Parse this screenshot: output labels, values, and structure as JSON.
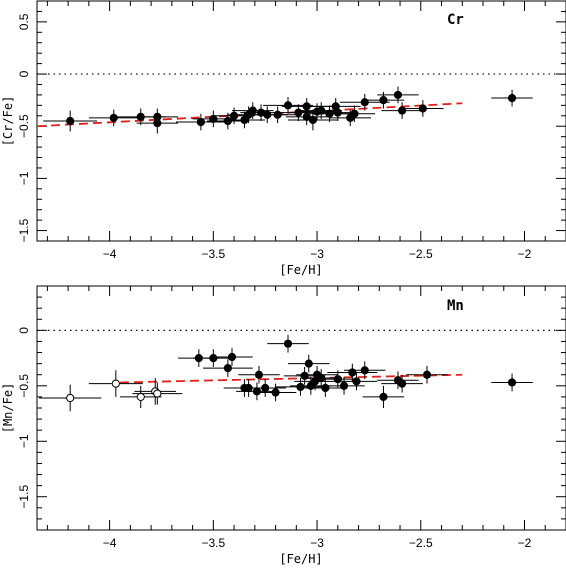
{
  "chart_data": [
    {
      "type": "scatter",
      "element_label": "Cr",
      "xlabel": "[Fe/H]",
      "ylabel": "[Cr/Fe]",
      "xlim": [
        -4.35,
        -1.8
      ],
      "ylim": [
        -1.6,
        0.7
      ],
      "xticks": [
        -4,
        -3.5,
        -3,
        -2.5,
        -2
      ],
      "xtick_labels": [
        "−4",
        "−3.5",
        "−3",
        "−2.5",
        "−2"
      ],
      "yticks": [
        0.5,
        0,
        -0.5,
        -1,
        -1.5
      ],
      "ytick_labels": [
        "0.5",
        "0",
        "−0.5",
        "−1",
        "−1.5"
      ],
      "reference_line_y": 0,
      "fit_line": {
        "x": [
          -4.35,
          -2.3
        ],
        "y": [
          -0.5,
          -0.28
        ],
        "color": "#e0201b"
      },
      "points": [
        {
          "x": -4.19,
          "y": -0.45,
          "xerr": 0.13,
          "yerr": 0.1,
          "filled": true
        },
        {
          "x": -3.98,
          "y": -0.42,
          "xerr": 0.12,
          "yerr": 0.08,
          "filled": true
        },
        {
          "x": -3.85,
          "y": -0.41,
          "xerr": 0.12,
          "yerr": 0.08,
          "filled": true
        },
        {
          "x": -3.77,
          "y": -0.47,
          "xerr": 0.1,
          "yerr": 0.1,
          "filled": true
        },
        {
          "x": -3.77,
          "y": -0.41,
          "xerr": 0.1,
          "yerr": 0.08,
          "filled": true
        },
        {
          "x": -3.56,
          "y": -0.46,
          "xerr": 0.12,
          "yerr": 0.08,
          "filled": true
        },
        {
          "x": -3.5,
          "y": -0.43,
          "xerr": 0.1,
          "yerr": 0.08,
          "filled": true
        },
        {
          "x": -3.43,
          "y": -0.45,
          "xerr": 0.1,
          "yerr": 0.08,
          "filled": true
        },
        {
          "x": -3.4,
          "y": -0.4,
          "xerr": 0.1,
          "yerr": 0.08,
          "filled": true
        },
        {
          "x": -3.35,
          "y": -0.44,
          "xerr": 0.1,
          "yerr": 0.08,
          "filled": true
        },
        {
          "x": -3.33,
          "y": -0.39,
          "xerr": 0.1,
          "yerr": 0.08,
          "filled": true
        },
        {
          "x": -3.31,
          "y": -0.35,
          "xerr": 0.1,
          "yerr": 0.08,
          "filled": true
        },
        {
          "x": -3.27,
          "y": -0.37,
          "xerr": 0.1,
          "yerr": 0.08,
          "filled": true
        },
        {
          "x": -3.24,
          "y": -0.39,
          "xerr": 0.1,
          "yerr": 0.08,
          "filled": true
        },
        {
          "x": -3.19,
          "y": -0.39,
          "xerr": 0.1,
          "yerr": 0.08,
          "filled": true
        },
        {
          "x": -3.14,
          "y": -0.3,
          "xerr": 0.12,
          "yerr": 0.08,
          "filled": true
        },
        {
          "x": -3.09,
          "y": -0.37,
          "xerr": 0.1,
          "yerr": 0.08,
          "filled": true
        },
        {
          "x": -3.05,
          "y": -0.31,
          "xerr": 0.12,
          "yerr": 0.08,
          "filled": true
        },
        {
          "x": -3.05,
          "y": -0.41,
          "xerr": 0.1,
          "yerr": 0.08,
          "filled": true
        },
        {
          "x": -3.02,
          "y": -0.44,
          "xerr": 0.12,
          "yerr": 0.1,
          "filled": true
        },
        {
          "x": -3.0,
          "y": -0.36,
          "xerr": 0.1,
          "yerr": 0.08,
          "filled": true
        },
        {
          "x": -2.98,
          "y": -0.35,
          "xerr": 0.1,
          "yerr": 0.08,
          "filled": true
        },
        {
          "x": -2.94,
          "y": -0.38,
          "xerr": 0.12,
          "yerr": 0.08,
          "filled": true
        },
        {
          "x": -2.91,
          "y": -0.31,
          "xerr": 0.12,
          "yerr": 0.08,
          "filled": true
        },
        {
          "x": -2.9,
          "y": -0.37,
          "xerr": 0.1,
          "yerr": 0.08,
          "filled": true
        },
        {
          "x": -2.84,
          "y": -0.42,
          "xerr": 0.1,
          "yerr": 0.08,
          "filled": true
        },
        {
          "x": -2.82,
          "y": -0.38,
          "xerr": 0.1,
          "yerr": 0.08,
          "filled": true
        },
        {
          "x": -2.77,
          "y": -0.27,
          "xerr": 0.12,
          "yerr": 0.08,
          "filled": true
        },
        {
          "x": -2.68,
          "y": -0.25,
          "xerr": 0.1,
          "yerr": 0.08,
          "filled": true
        },
        {
          "x": -2.61,
          "y": -0.2,
          "xerr": 0.1,
          "yerr": 0.08,
          "filled": true
        },
        {
          "x": -2.59,
          "y": -0.35,
          "xerr": 0.1,
          "yerr": 0.08,
          "filled": true
        },
        {
          "x": -2.49,
          "y": -0.33,
          "xerr": 0.1,
          "yerr": 0.08,
          "filled": true
        },
        {
          "x": -2.06,
          "y": -0.23,
          "xerr": 0.1,
          "yerr": 0.08,
          "filled": true
        }
      ]
    },
    {
      "type": "scatter",
      "element_label": "Mn",
      "xlabel": "[Fe/H]",
      "ylabel": "[Mn/Fe]",
      "xlim": [
        -4.35,
        -1.8
      ],
      "ylim": [
        -1.8,
        0.4
      ],
      "xticks": [
        -4,
        -3.5,
        -3,
        -2.5,
        -2
      ],
      "xtick_labels": [
        "−4",
        "−3.5",
        "−3",
        "−2.5",
        "−2"
      ],
      "yticks": [
        0,
        -0.5,
        -1,
        -1.5
      ],
      "ytick_labels": [
        "0",
        "−0.5",
        "−1",
        "−1.5"
      ],
      "reference_line_y": 0,
      "fit_line": {
        "x": [
          -3.95,
          -2.3
        ],
        "y": [
          -0.47,
          -0.4
        ],
        "color": "#e0201b"
      },
      "points": [
        {
          "x": -4.19,
          "y": -0.61,
          "xerr": 0.15,
          "yerr": 0.12,
          "filled": false
        },
        {
          "x": -3.97,
          "y": -0.48,
          "xerr": 0.13,
          "yerr": 0.12,
          "filled": false
        },
        {
          "x": -3.85,
          "y": -0.6,
          "xerr": 0.1,
          "yerr": 0.1,
          "filled": false
        },
        {
          "x": -3.78,
          "y": -0.55,
          "xerr": 0.1,
          "yerr": 0.12,
          "filled": false
        },
        {
          "x": -3.77,
          "y": -0.57,
          "xerr": 0.12,
          "yerr": 0.1,
          "filled": false
        },
        {
          "x": -3.57,
          "y": -0.25,
          "xerr": 0.1,
          "yerr": 0.08,
          "filled": true
        },
        {
          "x": -3.5,
          "y": -0.25,
          "xerr": 0.1,
          "yerr": 0.08,
          "filled": true
        },
        {
          "x": -3.43,
          "y": -0.34,
          "xerr": 0.12,
          "yerr": 0.08,
          "filled": true
        },
        {
          "x": -3.41,
          "y": -0.24,
          "xerr": 0.1,
          "yerr": 0.08,
          "filled": true
        },
        {
          "x": -3.35,
          "y": -0.52,
          "xerr": 0.1,
          "yerr": 0.08,
          "filled": true
        },
        {
          "x": -3.33,
          "y": -0.52,
          "xerr": 0.1,
          "yerr": 0.08,
          "filled": true
        },
        {
          "x": -3.29,
          "y": -0.55,
          "xerr": 0.1,
          "yerr": 0.08,
          "filled": true
        },
        {
          "x": -3.28,
          "y": -0.4,
          "xerr": 0.1,
          "yerr": 0.08,
          "filled": true
        },
        {
          "x": -3.25,
          "y": -0.52,
          "xerr": 0.1,
          "yerr": 0.08,
          "filled": true
        },
        {
          "x": -3.2,
          "y": -0.56,
          "xerr": 0.1,
          "yerr": 0.08,
          "filled": true
        },
        {
          "x": -3.14,
          "y": -0.12,
          "xerr": 0.1,
          "yerr": 0.08,
          "filled": true
        },
        {
          "x": -3.08,
          "y": -0.51,
          "xerr": 0.12,
          "yerr": 0.08,
          "filled": true
        },
        {
          "x": -3.06,
          "y": -0.41,
          "xerr": 0.1,
          "yerr": 0.08,
          "filled": true
        },
        {
          "x": -3.04,
          "y": -0.3,
          "xerr": 0.1,
          "yerr": 0.08,
          "filled": true
        },
        {
          "x": -3.03,
          "y": -0.5,
          "xerr": 0.1,
          "yerr": 0.08,
          "filled": true
        },
        {
          "x": -3.01,
          "y": -0.46,
          "xerr": 0.1,
          "yerr": 0.08,
          "filled": true
        },
        {
          "x": -3.0,
          "y": -0.4,
          "xerr": 0.1,
          "yerr": 0.08,
          "filled": true
        },
        {
          "x": -2.98,
          "y": -0.43,
          "xerr": 0.1,
          "yerr": 0.08,
          "filled": true
        },
        {
          "x": -2.96,
          "y": -0.52,
          "xerr": 0.1,
          "yerr": 0.08,
          "filled": true
        },
        {
          "x": -2.9,
          "y": -0.44,
          "xerr": 0.1,
          "yerr": 0.08,
          "filled": true
        },
        {
          "x": -2.87,
          "y": -0.5,
          "xerr": 0.1,
          "yerr": 0.08,
          "filled": true
        },
        {
          "x": -2.83,
          "y": -0.38,
          "xerr": 0.12,
          "yerr": 0.08,
          "filled": true
        },
        {
          "x": -2.81,
          "y": -0.46,
          "xerr": 0.1,
          "yerr": 0.08,
          "filled": true
        },
        {
          "x": -2.77,
          "y": -0.36,
          "xerr": 0.1,
          "yerr": 0.08,
          "filled": true
        },
        {
          "x": -2.68,
          "y": -0.6,
          "xerr": 0.1,
          "yerr": 0.1,
          "filled": true
        },
        {
          "x": -2.61,
          "y": -0.45,
          "xerr": 0.1,
          "yerr": 0.08,
          "filled": true
        },
        {
          "x": -2.59,
          "y": -0.48,
          "xerr": 0.1,
          "yerr": 0.08,
          "filled": true
        },
        {
          "x": -2.47,
          "y": -0.4,
          "xerr": 0.1,
          "yerr": 0.08,
          "filled": true
        },
        {
          "x": -2.06,
          "y": -0.47,
          "xerr": 0.1,
          "yerr": 0.08,
          "filled": true
        }
      ]
    }
  ]
}
